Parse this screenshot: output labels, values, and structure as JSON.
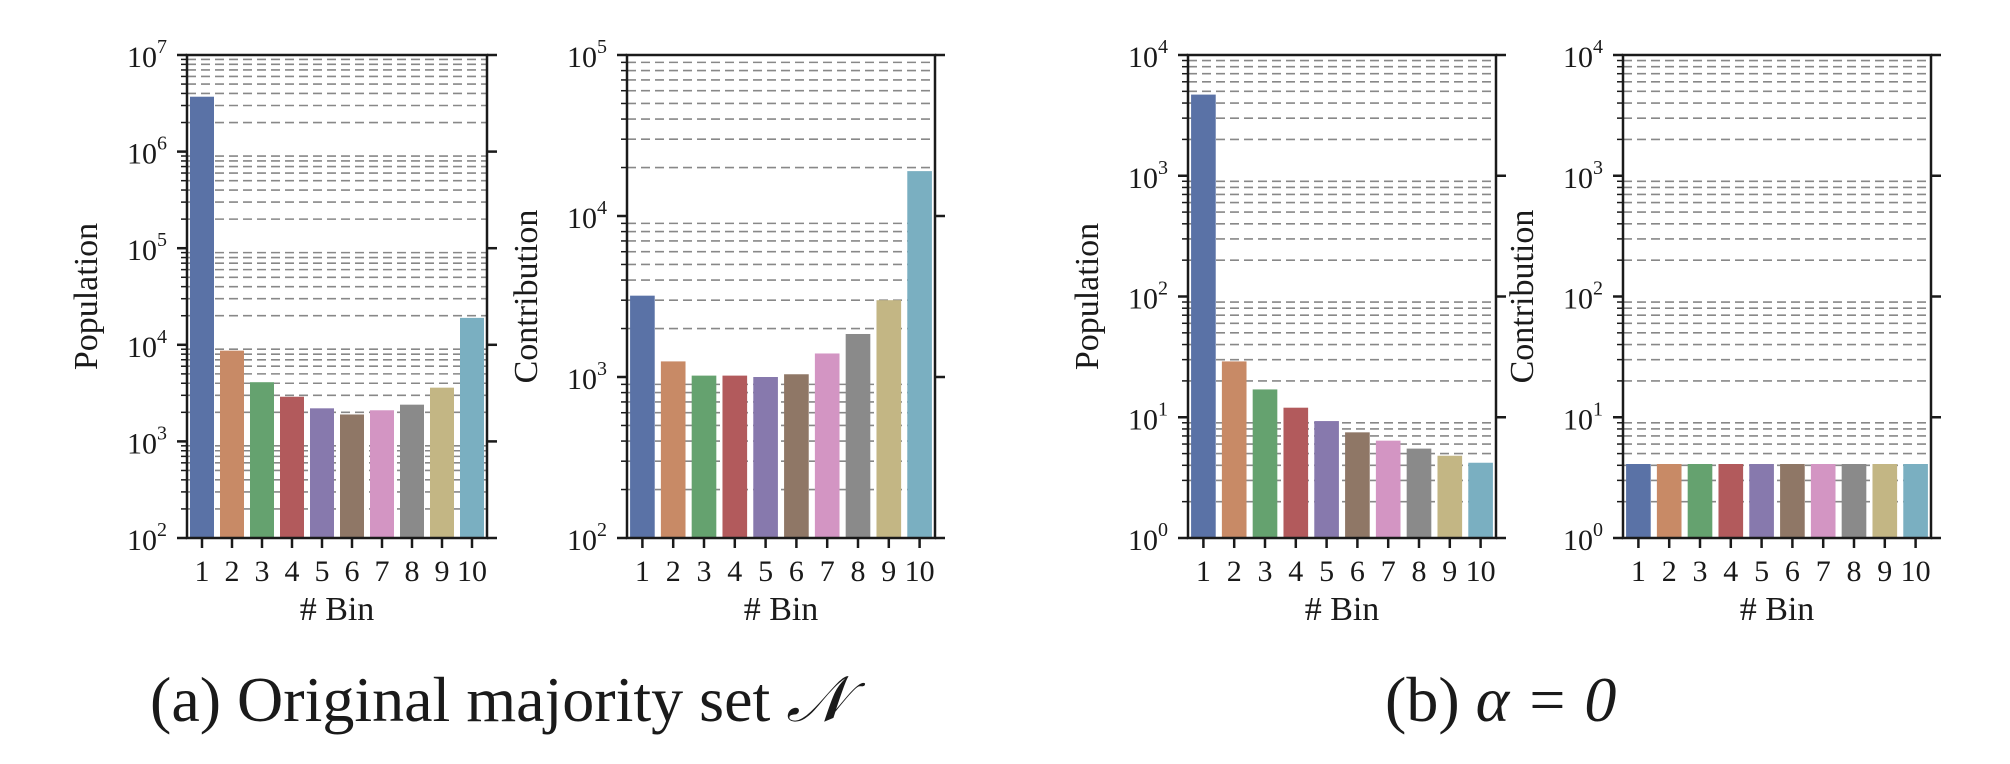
{
  "chart_data": [
    {
      "type": "bar",
      "panel": "a",
      "title": "",
      "xlabel": "# Bin",
      "ylabel": "Population",
      "yscale": "log",
      "ylim": [
        100,
        10000000
      ],
      "y_ticks": [
        {
          "base": "10",
          "exp": "2"
        },
        {
          "base": "10",
          "exp": "3"
        },
        {
          "base": "10",
          "exp": "4"
        },
        {
          "base": "10",
          "exp": "5"
        },
        {
          "base": "10",
          "exp": "6"
        },
        {
          "base": "10",
          "exp": "7"
        }
      ],
      "grid": "minor dashed horizontal",
      "categories": [
        "1",
        "2",
        "3",
        "4",
        "5",
        "6",
        "7",
        "8",
        "9",
        "10"
      ],
      "values": [
        3700000,
        8700,
        4100,
        2900,
        2200,
        1900,
        2100,
        2400,
        3600,
        19000
      ]
    },
    {
      "type": "bar",
      "panel": "a",
      "title": "",
      "xlabel": "# Bin",
      "ylabel": "Contribution",
      "yscale": "log",
      "ylim": [
        100,
        100000
      ],
      "y_ticks": [
        {
          "base": "10",
          "exp": "2"
        },
        {
          "base": "10",
          "exp": "3"
        },
        {
          "base": "10",
          "exp": "4"
        },
        {
          "base": "10",
          "exp": "5"
        }
      ],
      "grid": "minor dashed horizontal",
      "categories": [
        "1",
        "2",
        "3",
        "4",
        "5",
        "6",
        "7",
        "8",
        "9",
        "10"
      ],
      "values": [
        3200,
        1250,
        1020,
        1020,
        1000,
        1040,
        1400,
        1850,
        3000,
        19000
      ]
    },
    {
      "type": "bar",
      "panel": "b",
      "title": "",
      "xlabel": "# Bin",
      "ylabel": "Population",
      "yscale": "log",
      "ylim": [
        1,
        10000
      ],
      "y_ticks": [
        {
          "base": "10",
          "exp": "0"
        },
        {
          "base": "10",
          "exp": "1"
        },
        {
          "base": "10",
          "exp": "2"
        },
        {
          "base": "10",
          "exp": "3"
        },
        {
          "base": "10",
          "exp": "4"
        }
      ],
      "grid": "minor dashed horizontal",
      "categories": [
        "1",
        "2",
        "3",
        "4",
        "5",
        "6",
        "7",
        "8",
        "9",
        "10"
      ],
      "values": [
        4700,
        29,
        17,
        12,
        9.3,
        7.5,
        6.4,
        5.5,
        4.8,
        4.2
      ]
    },
    {
      "type": "bar",
      "panel": "b",
      "title": "",
      "xlabel": "# Bin",
      "ylabel": "Contribution",
      "yscale": "log",
      "ylim": [
        1,
        10000
      ],
      "y_ticks": [
        {
          "base": "10",
          "exp": "0"
        },
        {
          "base": "10",
          "exp": "1"
        },
        {
          "base": "10",
          "exp": "2"
        },
        {
          "base": "10",
          "exp": "3"
        },
        {
          "base": "10",
          "exp": "4"
        }
      ],
      "grid": "minor dashed horizontal",
      "categories": [
        "1",
        "2",
        "3",
        "4",
        "5",
        "6",
        "7",
        "8",
        "9",
        "10"
      ],
      "values": [
        4.1,
        4.1,
        4.1,
        4.1,
        4.1,
        4.1,
        4.1,
        4.1,
        4.1,
        4.1
      ]
    }
  ],
  "bar_colors": [
    "#5a72a6",
    "#c88a66",
    "#65a26f",
    "#b25a5c",
    "#8779ad",
    "#8f7766",
    "#d395c3",
    "#8a8a8a",
    "#c3b684",
    "#7aafc1"
  ],
  "grid_color": "#888888",
  "captions": {
    "a_prefix": "(a)",
    "a_text": "Original majority set ",
    "a_symbol": "𝒩",
    "b_prefix": "(b)",
    "b_math": "α = 0"
  }
}
